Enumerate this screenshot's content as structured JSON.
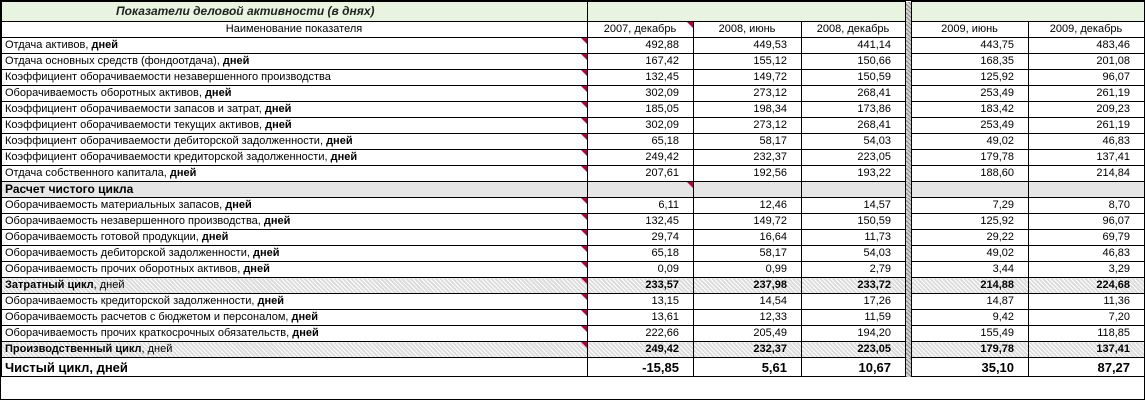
{
  "sheet": {
    "title": "Показатели деловой активности (в днях)",
    "col_header_name": "Наименование показателя",
    "columns": [
      "2007, декабрь",
      "2008, июнь",
      "2008, декабрь",
      "2009, июнь",
      "2009, декабрь"
    ],
    "rows": [
      {
        "label": "Отдача активов, ",
        "bold_suffix": "дней",
        "values": [
          "492,88",
          "449,53",
          "441,14",
          "443,75",
          "483,46"
        ]
      },
      {
        "label": "Отдача основных средств (фондоотдача), ",
        "bold_suffix": "дней",
        "values": [
          "167,42",
          "155,12",
          "150,66",
          "168,35",
          "201,08"
        ]
      },
      {
        "label": "Коэффициент оборачиваемости незавершенного производства",
        "bold_suffix": "",
        "values": [
          "132,45",
          "149,72",
          "150,59",
          "125,92",
          "96,07"
        ]
      },
      {
        "label": "Оборачиваемость оборотных активов, ",
        "bold_suffix": "дней",
        "values": [
          "302,09",
          "273,12",
          "268,41",
          "253,49",
          "261,19"
        ]
      },
      {
        "label": "Коэффициент оборачиваемости запасов и затрат, ",
        "bold_suffix": "дней",
        "values": [
          "185,05",
          "198,34",
          "173,86",
          "183,42",
          "209,23"
        ]
      },
      {
        "label": "Коэффициент оборачиваемости текущих активов, ",
        "bold_suffix": "дней",
        "values": [
          "302,09",
          "273,12",
          "268,41",
          "253,49",
          "261,19"
        ]
      },
      {
        "label": "Коэффициент оборачиваемости дебиторской задолженности, ",
        "bold_suffix": "дней",
        "values": [
          "65,18",
          "58,17",
          "54,03",
          "49,02",
          "46,83"
        ]
      },
      {
        "label": "Коэффициент оборачиваемости кредиторской задолженности, ",
        "bold_suffix": "дней",
        "values": [
          "249,42",
          "232,37",
          "223,05",
          "179,78",
          "137,41"
        ]
      },
      {
        "label": "Отдача собственного капитала, ",
        "bold_suffix": "дней",
        "values": [
          "207,61",
          "192,56",
          "193,22",
          "188,60",
          "214,84"
        ]
      }
    ],
    "section_title": "Расчет чистого цикла",
    "cycle_rows_1": [
      {
        "label": "Оборачиваемость материальных запасов, ",
        "bold_suffix": "дней",
        "values": [
          "6,11",
          "12,46",
          "14,57",
          "7,29",
          "8,70"
        ]
      },
      {
        "label": "Оборачиваемость незавершенного производства, ",
        "bold_suffix": "дней",
        "values": [
          "132,45",
          "149,72",
          "150,59",
          "125,92",
          "96,07"
        ]
      },
      {
        "label": "Оборачиваемость готовой продукции, ",
        "bold_suffix": "дней",
        "values": [
          "29,74",
          "16,64",
          "11,73",
          "29,22",
          "69,79"
        ]
      },
      {
        "label": "Оборачиваемость дебиторской задолженности, ",
        "bold_suffix": "дней",
        "values": [
          "65,18",
          "58,17",
          "54,03",
          "49,02",
          "46,83"
        ]
      },
      {
        "label": "Оборачиваемость прочих оборотных активов, ",
        "bold_suffix": "дней",
        "values": [
          "0,09",
          "0,99",
          "2,79",
          "3,44",
          "3,29"
        ]
      }
    ],
    "cost_cycle": {
      "label": "Затратный цикл",
      "suffix": ", дней",
      "values": [
        "233,57",
        "237,98",
        "233,72",
        "214,88",
        "224,68"
      ]
    },
    "cycle_rows_2": [
      {
        "label": "Оборачиваемость кредиторской задолженности, ",
        "bold_suffix": "дней",
        "values": [
          "13,15",
          "14,54",
          "17,26",
          "14,87",
          "11,36"
        ]
      },
      {
        "label": "Оборачиваемость расчетов с бюджетом и персоналом, ",
        "bold_suffix": "дней",
        "values": [
          "13,61",
          "12,33",
          "11,59",
          "9,42",
          "7,20"
        ]
      },
      {
        "label": "Оборачиваемость прочих краткосрочных обязательств, ",
        "bold_suffix": "дней",
        "values": [
          "222,66",
          "205,49",
          "194,20",
          "155,49",
          "118,85"
        ]
      }
    ],
    "production_cycle": {
      "label": "Производственный цикл",
      "suffix": ", дней",
      "values": [
        "249,42",
        "232,37",
        "223,05",
        "179,78",
        "137,41"
      ]
    },
    "net_cycle": {
      "label": "Чистый цикл",
      "suffix": ", дней",
      "values": [
        "-15,85",
        "5,61",
        "10,67",
        "35,10",
        "87,27"
      ]
    },
    "colors": {
      "title_bg": "#e8f3e0",
      "section_bg": "#e6e6e6",
      "comment_marker": "#c0003a"
    }
  }
}
